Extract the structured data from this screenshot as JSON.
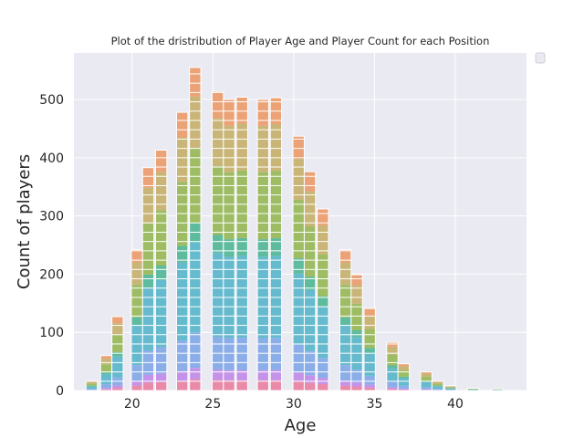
{
  "chart_data": {
    "type": "bar",
    "stacked": true,
    "title": "Plot of the dristribution of Player Age and Player Count for each Position",
    "xlabel": "Age",
    "ylabel": "Count of players",
    "xlim": [
      16.4,
      44.4
    ],
    "ylim": [
      0,
      580
    ],
    "xticks": [
      20,
      25,
      30,
      35,
      40
    ],
    "yticks": [
      0,
      100,
      200,
      300,
      400,
      500
    ],
    "grid": true,
    "legend": {
      "placement": "top-right",
      "entries": []
    },
    "bin_width": 0.7,
    "bins": [
      {
        "age": 17.5,
        "total": 16
      },
      {
        "age": 18.4,
        "total": 60
      },
      {
        "age": 19.1,
        "total": 127
      },
      {
        "age": 20.3,
        "total": 242
      },
      {
        "age": 21.0,
        "total": 383
      },
      {
        "age": 21.8,
        "total": 413
      },
      {
        "age": 23.1,
        "total": 478
      },
      {
        "age": 23.9,
        "total": 555
      },
      {
        "age": 25.3,
        "total": 514
      },
      {
        "age": 26.0,
        "total": 500
      },
      {
        "age": 26.8,
        "total": 504
      },
      {
        "age": 28.1,
        "total": 500
      },
      {
        "age": 28.9,
        "total": 503
      },
      {
        "age": 30.3,
        "total": 437
      },
      {
        "age": 31.0,
        "total": 376
      },
      {
        "age": 31.8,
        "total": 312
      },
      {
        "age": 33.2,
        "total": 242
      },
      {
        "age": 33.9,
        "total": 199
      },
      {
        "age": 34.7,
        "total": 141
      },
      {
        "age": 36.1,
        "total": 83
      },
      {
        "age": 36.8,
        "total": 46
      },
      {
        "age": 38.2,
        "total": 32
      },
      {
        "age": 38.9,
        "total": 16
      },
      {
        "age": 39.7,
        "total": 8
      },
      {
        "age": 41.1,
        "total": 4
      },
      {
        "age": 42.6,
        "total": 3
      }
    ],
    "series_colors": [
      "#e9799b",
      "#be83e8",
      "#7aa3e8",
      "#4fb2c7",
      "#47b38f",
      "#8fb44a",
      "#c2ab62",
      "#eb9560",
      "#ee8a80"
    ]
  }
}
